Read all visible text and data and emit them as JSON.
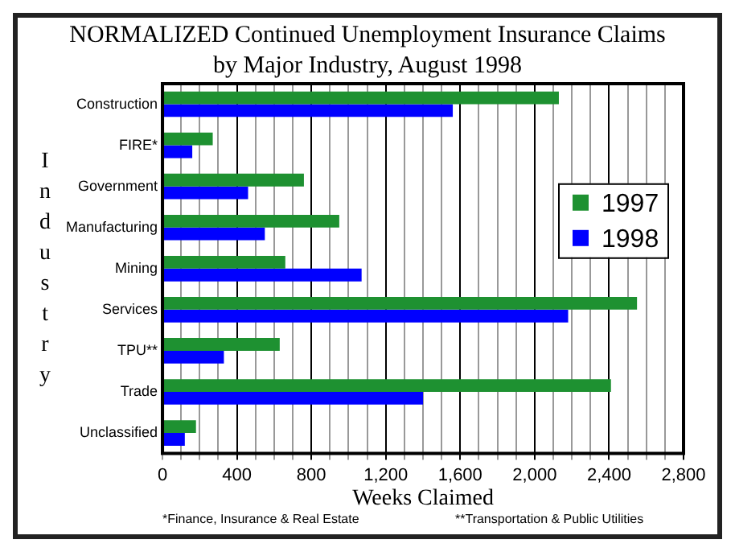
{
  "chart_data": {
    "type": "bar",
    "orientation": "horizontal",
    "title": "NORMALIZED Continued Unemployment Insurance Claims",
    "subtitle": "by Major Industry, August 1998",
    "xlabel": "Weeks Claimed",
    "ylabel": "Industry",
    "categories": [
      "Construction",
      "FIRE*",
      "Government",
      "Manufacturing",
      "Mining",
      "Services",
      "TPU**",
      "Trade",
      "Unclassified"
    ],
    "series": [
      {
        "name": "1997",
        "color": "#1e9131",
        "values": [
          2130,
          270,
          760,
          950,
          660,
          2550,
          630,
          2410,
          180
        ]
      },
      {
        "name": "1998",
        "color": "#0000ff",
        "values": [
          1560,
          160,
          460,
          550,
          1070,
          2180,
          330,
          1400,
          120
        ]
      }
    ],
    "xlim": [
      0,
      2800
    ],
    "xticks": [
      0,
      {
        "value": 100,
        "label": null
      },
      {
        "value": 200,
        "label": null
      },
      {
        "value": 300,
        "label": null
      },
      {
        "value": 400,
        "label": "400"
      },
      {
        "value": 500,
        "label": null
      },
      {
        "value": 600,
        "label": null
      },
      {
        "value": 700,
        "label": null
      },
      {
        "value": 800,
        "label": "800"
      },
      {
        "value": 900,
        "label": null
      },
      {
        "value": 1000,
        "label": null
      },
      {
        "value": 1100,
        "label": null
      },
      {
        "value": 1200,
        "label": "1,200"
      },
      {
        "value": 1300,
        "label": null
      },
      {
        "value": 1400,
        "label": null
      },
      {
        "value": 1500,
        "label": null
      },
      {
        "value": 1600,
        "label": "1,600"
      },
      {
        "value": 1700,
        "label": null
      },
      {
        "value": 1800,
        "label": null
      },
      {
        "value": 1900,
        "label": null
      },
      {
        "value": 2000,
        "label": "2,000"
      },
      {
        "value": 2100,
        "label": null
      },
      {
        "value": 2200,
        "label": null
      },
      {
        "value": 2300,
        "label": null
      },
      {
        "value": 2400,
        "label": "2,400"
      },
      {
        "value": 2500,
        "label": null
      },
      {
        "value": 2600,
        "label": null
      },
      {
        "value": 2700,
        "label": null
      },
      {
        "value": 2800,
        "label": "2,800"
      }
    ],
    "grid": "x",
    "legend": "right",
    "annotations": [
      "*Finance, Insurance & Real Estate",
      "**Transportation & Public Utilities"
    ]
  }
}
